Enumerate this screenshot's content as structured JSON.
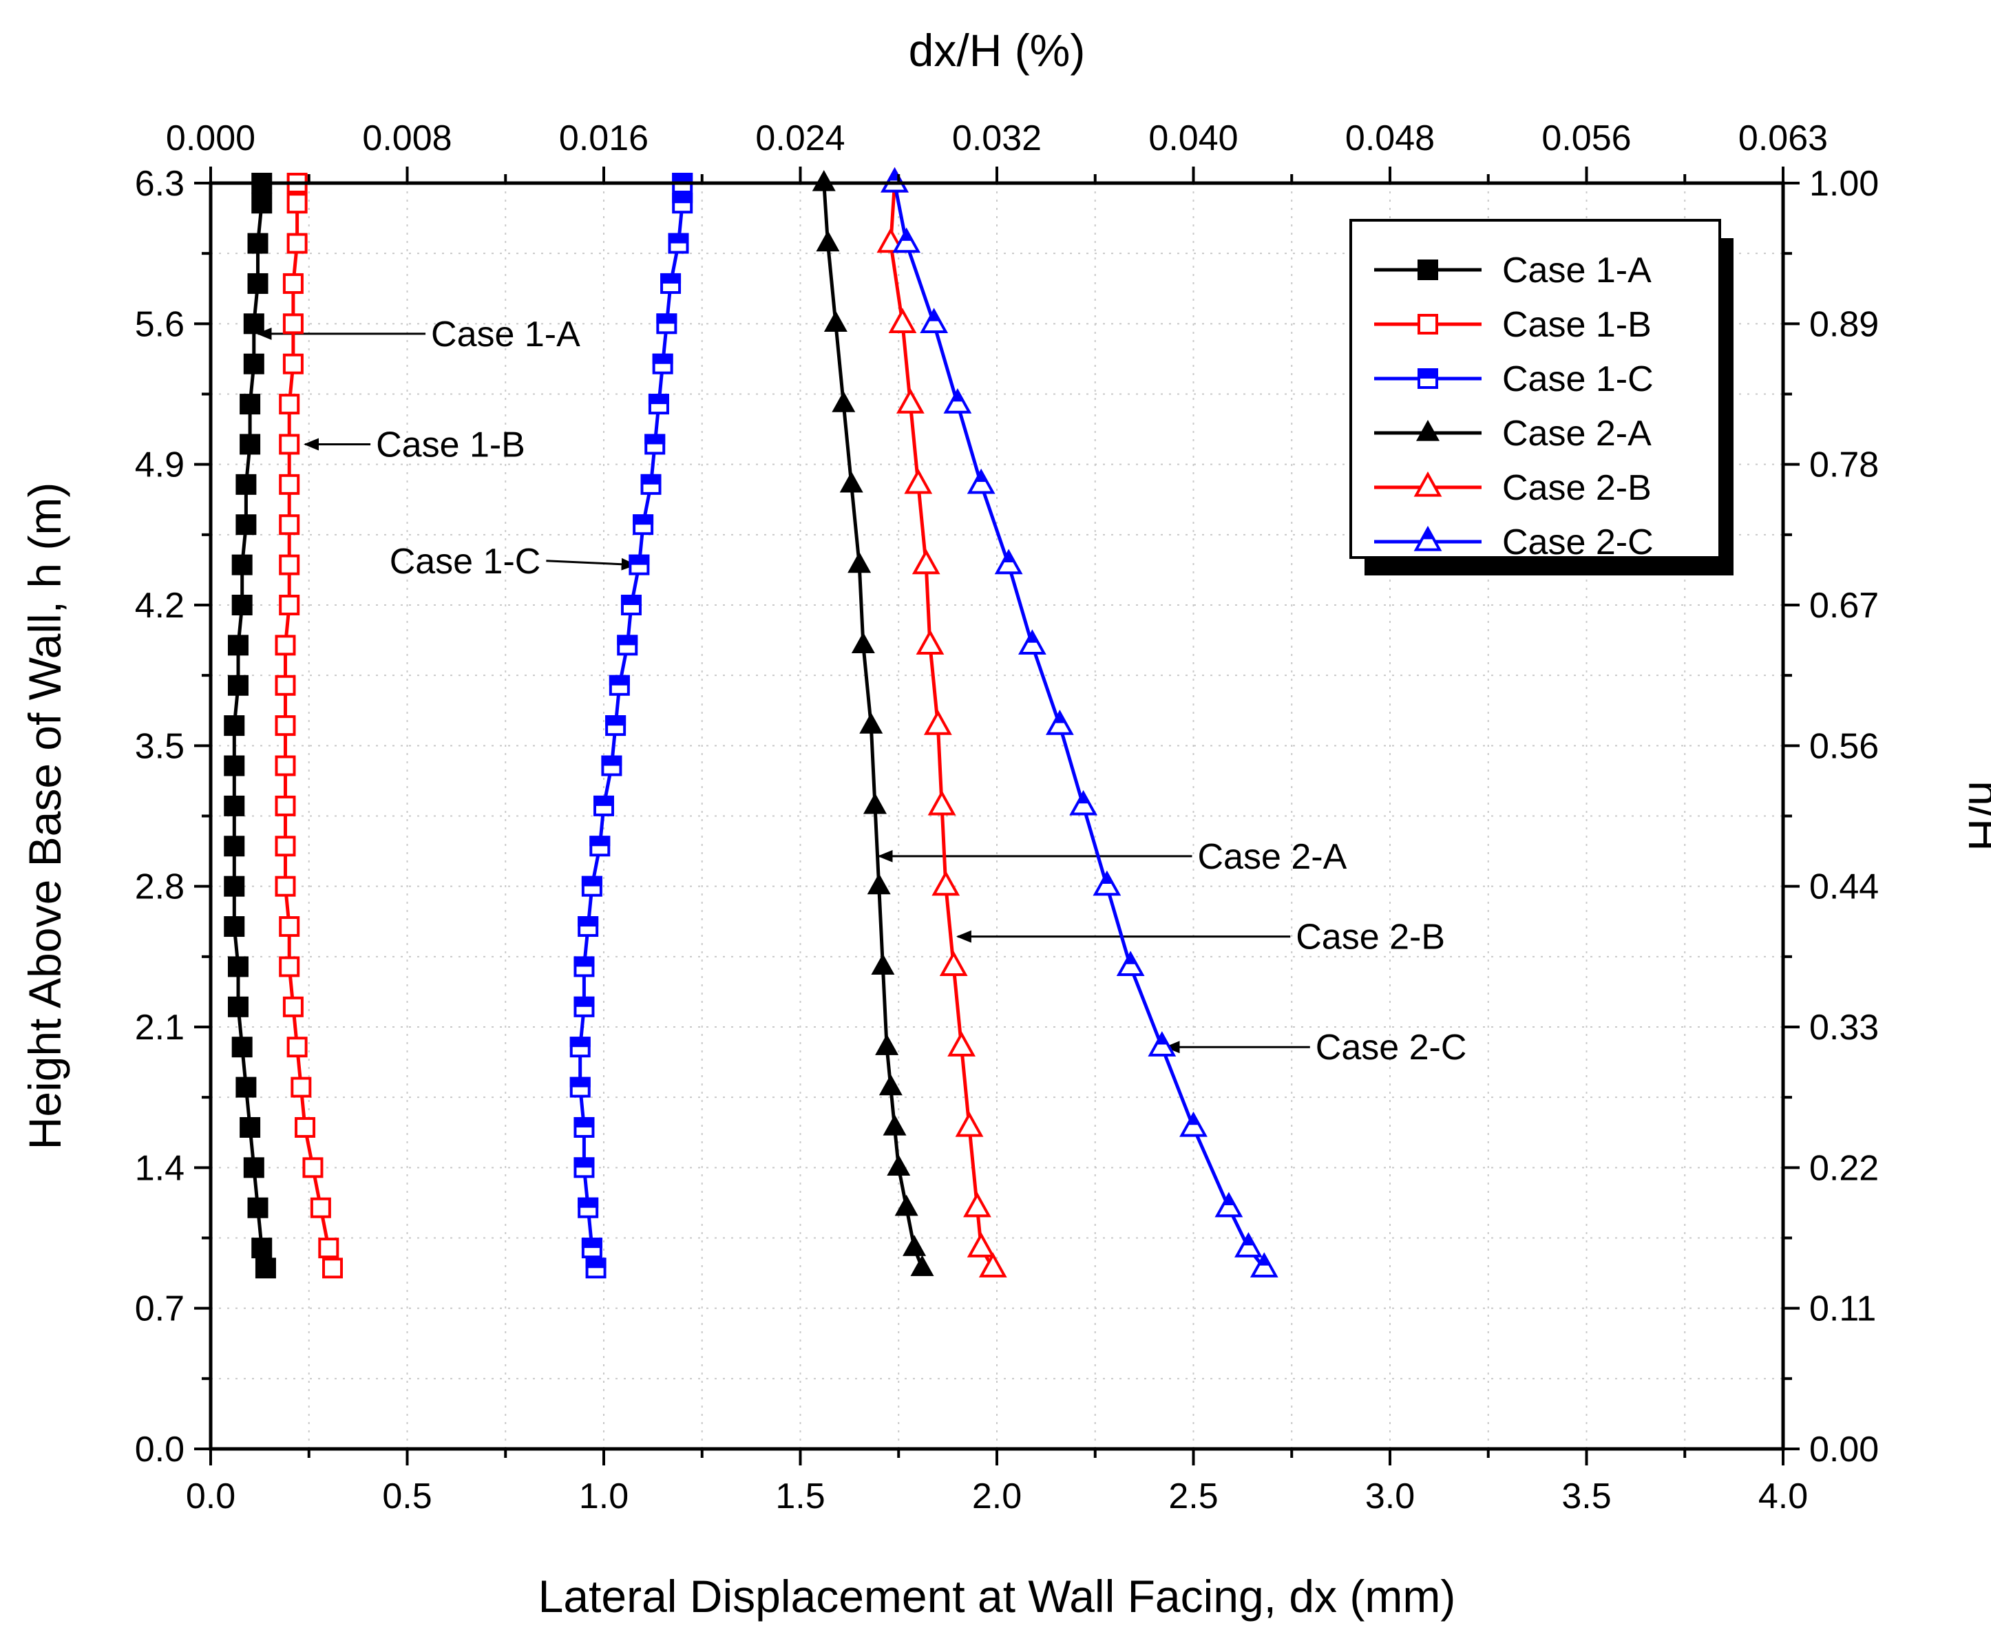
{
  "chart_data": {
    "type": "line",
    "xlabel": "Lateral Displacement at Wall Facing, dx (mm)",
    "ylabel": "Height Above Base of Wall, h (m)",
    "x2label": "dx/H (%)",
    "y2label": "h/H",
    "xlim": [
      0,
      4
    ],
    "ylim": [
      0,
      6.3
    ],
    "x_ticks": [
      "0.0",
      "0.5",
      "1.0",
      "1.5",
      "2.0",
      "2.5",
      "3.0",
      "3.5",
      "4.0"
    ],
    "y_ticks": [
      "0.0",
      "0.7",
      "1.4",
      "2.1",
      "2.8",
      "3.5",
      "4.2",
      "4.9",
      "5.6",
      "6.3"
    ],
    "x2_ticks": [
      "0.000",
      "0.008",
      "0.016",
      "0.024",
      "0.032",
      "0.040",
      "0.048",
      "0.056",
      "0.063"
    ],
    "y2_ticks": [
      "0.00",
      "0.11",
      "0.22",
      "0.33",
      "0.44",
      "0.56",
      "0.67",
      "0.78",
      "0.89",
      "1.00"
    ],
    "legend_position": "top-right",
    "series": [
      {
        "name": "Case 1-A",
        "color": "#000000",
        "marker": "square-filled",
        "points": [
          [
            0.14,
            0.9
          ],
          [
            0.13,
            1.0
          ],
          [
            0.12,
            1.2
          ],
          [
            0.11,
            1.4
          ],
          [
            0.1,
            1.6
          ],
          [
            0.09,
            1.8
          ],
          [
            0.08,
            2.0
          ],
          [
            0.07,
            2.2
          ],
          [
            0.07,
            2.4
          ],
          [
            0.06,
            2.6
          ],
          [
            0.06,
            2.8
          ],
          [
            0.06,
            3.0
          ],
          [
            0.06,
            3.2
          ],
          [
            0.06,
            3.4
          ],
          [
            0.06,
            3.6
          ],
          [
            0.07,
            3.8
          ],
          [
            0.07,
            4.0
          ],
          [
            0.08,
            4.2
          ],
          [
            0.08,
            4.4
          ],
          [
            0.09,
            4.6
          ],
          [
            0.09,
            4.8
          ],
          [
            0.1,
            5.0
          ],
          [
            0.1,
            5.2
          ],
          [
            0.11,
            5.4
          ],
          [
            0.11,
            5.6
          ],
          [
            0.12,
            5.8
          ],
          [
            0.12,
            6.0
          ],
          [
            0.13,
            6.2
          ],
          [
            0.13,
            6.3
          ]
        ]
      },
      {
        "name": "Case 1-B",
        "color": "#ff0000",
        "marker": "square-open",
        "points": [
          [
            0.31,
            0.9
          ],
          [
            0.3,
            1.0
          ],
          [
            0.28,
            1.2
          ],
          [
            0.26,
            1.4
          ],
          [
            0.24,
            1.6
          ],
          [
            0.23,
            1.8
          ],
          [
            0.22,
            2.0
          ],
          [
            0.21,
            2.2
          ],
          [
            0.2,
            2.4
          ],
          [
            0.2,
            2.6
          ],
          [
            0.19,
            2.8
          ],
          [
            0.19,
            3.0
          ],
          [
            0.19,
            3.2
          ],
          [
            0.19,
            3.4
          ],
          [
            0.19,
            3.6
          ],
          [
            0.19,
            3.8
          ],
          [
            0.19,
            4.0
          ],
          [
            0.2,
            4.2
          ],
          [
            0.2,
            4.4
          ],
          [
            0.2,
            4.6
          ],
          [
            0.2,
            4.8
          ],
          [
            0.2,
            5.0
          ],
          [
            0.2,
            5.2
          ],
          [
            0.21,
            5.4
          ],
          [
            0.21,
            5.6
          ],
          [
            0.21,
            5.8
          ],
          [
            0.22,
            6.0
          ],
          [
            0.22,
            6.2
          ],
          [
            0.22,
            6.3
          ]
        ]
      },
      {
        "name": "Case 1-C",
        "color": "#0000ff",
        "marker": "square-half",
        "points": [
          [
            0.98,
            0.9
          ],
          [
            0.97,
            1.0
          ],
          [
            0.96,
            1.2
          ],
          [
            0.95,
            1.4
          ],
          [
            0.95,
            1.6
          ],
          [
            0.94,
            1.8
          ],
          [
            0.94,
            2.0
          ],
          [
            0.95,
            2.2
          ],
          [
            0.95,
            2.4
          ],
          [
            0.96,
            2.6
          ],
          [
            0.97,
            2.8
          ],
          [
            0.99,
            3.0
          ],
          [
            1.0,
            3.2
          ],
          [
            1.02,
            3.4
          ],
          [
            1.03,
            3.6
          ],
          [
            1.04,
            3.8
          ],
          [
            1.06,
            4.0
          ],
          [
            1.07,
            4.2
          ],
          [
            1.09,
            4.4
          ],
          [
            1.1,
            4.6
          ],
          [
            1.12,
            4.8
          ],
          [
            1.13,
            5.0
          ],
          [
            1.14,
            5.2
          ],
          [
            1.15,
            5.4
          ],
          [
            1.16,
            5.6
          ],
          [
            1.17,
            5.8
          ],
          [
            1.19,
            6.0
          ],
          [
            1.2,
            6.2
          ],
          [
            1.2,
            6.3
          ]
        ]
      },
      {
        "name": "Case 2-A",
        "color": "#000000",
        "marker": "triangle-filled",
        "points": [
          [
            1.81,
            0.9
          ],
          [
            1.79,
            1.0
          ],
          [
            1.77,
            1.2
          ],
          [
            1.75,
            1.4
          ],
          [
            1.74,
            1.6
          ],
          [
            1.73,
            1.8
          ],
          [
            1.72,
            2.0
          ],
          [
            1.71,
            2.4
          ],
          [
            1.7,
            2.8
          ],
          [
            1.69,
            3.2
          ],
          [
            1.68,
            3.6
          ],
          [
            1.66,
            4.0
          ],
          [
            1.65,
            4.4
          ],
          [
            1.63,
            4.8
          ],
          [
            1.61,
            5.2
          ],
          [
            1.59,
            5.6
          ],
          [
            1.57,
            6.0
          ],
          [
            1.56,
            6.3
          ]
        ]
      },
      {
        "name": "Case 2-B",
        "color": "#ff0000",
        "marker": "triangle-open",
        "points": [
          [
            1.99,
            0.9
          ],
          [
            1.96,
            1.0
          ],
          [
            1.95,
            1.2
          ],
          [
            1.93,
            1.6
          ],
          [
            1.91,
            2.0
          ],
          [
            1.89,
            2.4
          ],
          [
            1.87,
            2.8
          ],
          [
            1.86,
            3.2
          ],
          [
            1.85,
            3.6
          ],
          [
            1.83,
            4.0
          ],
          [
            1.82,
            4.4
          ],
          [
            1.8,
            4.8
          ],
          [
            1.78,
            5.2
          ],
          [
            1.76,
            5.6
          ],
          [
            1.73,
            6.0
          ],
          [
            1.74,
            6.3
          ]
        ]
      },
      {
        "name": "Case 2-C",
        "color": "#0000ff",
        "marker": "triangle-half",
        "points": [
          [
            2.68,
            0.9
          ],
          [
            2.64,
            1.0
          ],
          [
            2.59,
            1.2
          ],
          [
            2.5,
            1.6
          ],
          [
            2.42,
            2.0
          ],
          [
            2.34,
            2.4
          ],
          [
            2.28,
            2.8
          ],
          [
            2.22,
            3.2
          ],
          [
            2.16,
            3.6
          ],
          [
            2.09,
            4.0
          ],
          [
            2.03,
            4.4
          ],
          [
            1.96,
            4.8
          ],
          [
            1.9,
            5.2
          ],
          [
            1.84,
            5.6
          ],
          [
            1.77,
            6.0
          ],
          [
            1.74,
            6.3
          ]
        ]
      }
    ],
    "annotations": [
      {
        "text": "Case 1-A",
        "target": [
          0.12,
          5.55
        ],
        "label_at": [
          0.55,
          5.55
        ]
      },
      {
        "text": "Case 1-B",
        "target": [
          0.24,
          5.0
        ],
        "label_at": [
          0.41,
          5.0
        ]
      },
      {
        "text": "Case 1-C",
        "target": [
          1.08,
          4.4
        ],
        "label_at": [
          0.85,
          4.42
        ]
      },
      {
        "text": "Case 2-A",
        "target": [
          1.7,
          2.95
        ],
        "label_at": [
          2.5,
          2.95
        ]
      },
      {
        "text": "Case 2-B",
        "target": [
          1.9,
          2.55
        ],
        "label_at": [
          2.75,
          2.55
        ]
      },
      {
        "text": "Case 2-C",
        "target": [
          2.43,
          2.0
        ],
        "label_at": [
          2.8,
          2.0
        ]
      }
    ]
  }
}
